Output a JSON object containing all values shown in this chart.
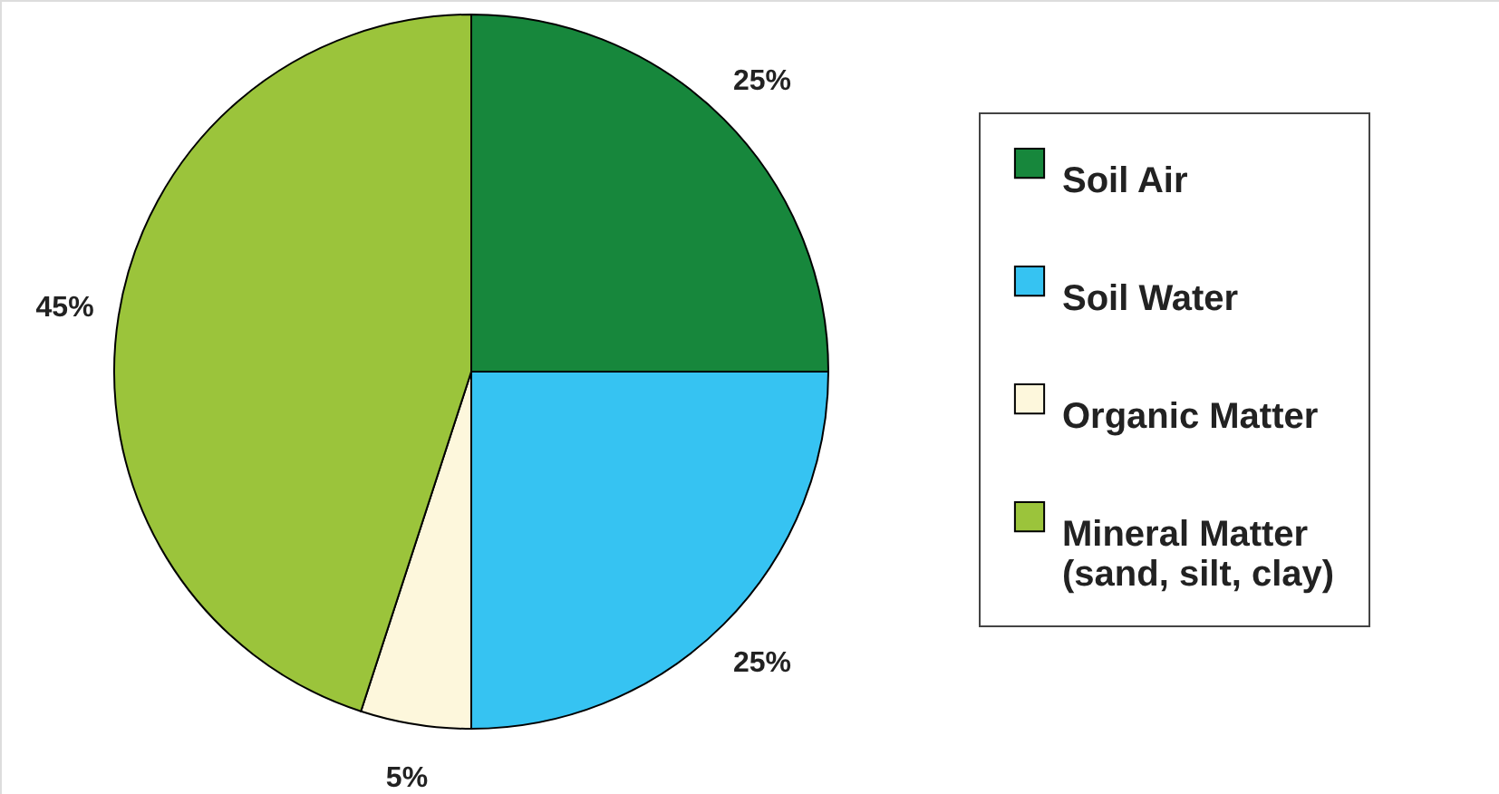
{
  "chart_data": {
    "type": "pie",
    "categories": [
      "Soil Air",
      "Soil Water",
      "Organic Matter",
      "Mineral Matter (sand, silt, clay)"
    ],
    "values": [
      25,
      25,
      5,
      45
    ],
    "colors": [
      "#17873c",
      "#36c3f2",
      "#fdf7dc",
      "#9bc43b"
    ],
    "value_labels": [
      "25%",
      "25%",
      "5%",
      "45%"
    ],
    "legend": "right"
  }
}
